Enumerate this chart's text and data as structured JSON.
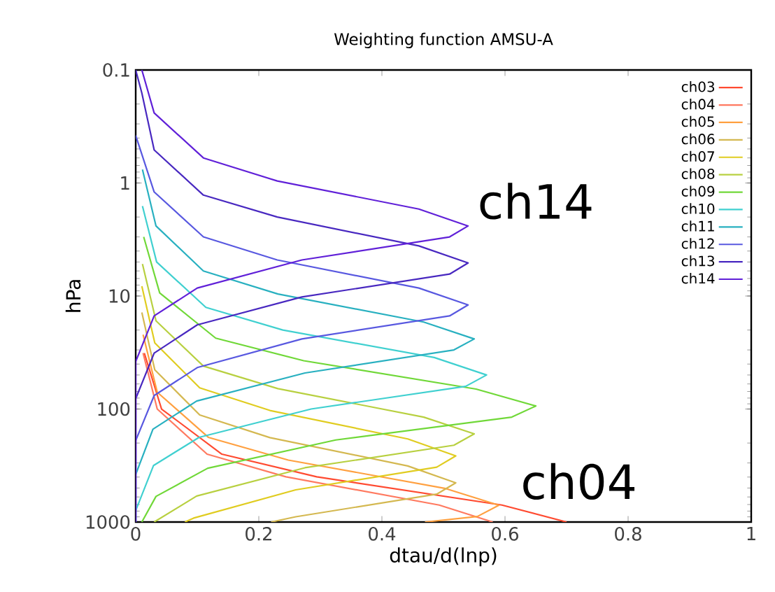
{
  "chart_data": {
    "type": "line",
    "title": "Weighting function AMSU-A",
    "xlabel": "dtau/d(lnp)",
    "ylabel": "hPa",
    "xlim": [
      0,
      1
    ],
    "xticks": [
      0,
      0.2,
      0.4,
      0.6,
      0.8,
      1
    ],
    "ylim": [
      1000,
      0.1
    ],
    "yticks": [
      0.1,
      1,
      10,
      100,
      1000
    ],
    "log": "y",
    "grid": false,
    "legend": "top right",
    "annotations": [
      "ch14",
      "ch04"
    ],
    "series": [
      {
        "name": "ch03",
        "color": "#ff4a30",
        "x": [
          0.014,
          0.042,
          0.14,
          0.294,
          0.595,
          0.7
        ],
        "values": [
          32,
          100,
          251,
          398,
          708,
          1000
        ]
      },
      {
        "name": "ch04",
        "color": "#ff7a60",
        "x": [
          0.012,
          0.035,
          0.116,
          0.244,
          0.493,
          0.58
        ],
        "values": [
          32,
          100,
          251,
          398,
          708,
          1000
        ]
      },
      {
        "name": "ch05",
        "color": "#ffa040",
        "x": [
          0.012,
          0.035,
          0.118,
          0.248,
          0.502,
          0.59,
          0.555,
          0.47
        ],
        "values": [
          22,
          71,
          178,
          283,
          503,
          710,
          894,
          1000
        ]
      },
      {
        "name": "ch06",
        "color": "#d4b850",
        "x": [
          0.01,
          0.031,
          0.104,
          0.218,
          0.442,
          0.52,
          0.489,
          0.26,
          0.22
        ],
        "values": [
          14,
          45,
          113,
          179,
          319,
          450,
          567,
          898,
          1000
        ]
      },
      {
        "name": "ch07",
        "color": "#e0cc20",
        "x": [
          0.01,
          0.031,
          0.104,
          0.218,
          0.442,
          0.52,
          0.489,
          0.26,
          0.094,
          0.08
        ],
        "values": [
          8.2,
          26,
          65,
          103,
          184,
          260,
          327,
          519,
          923,
          1000
        ]
      },
      {
        "name": "ch08",
        "color": "#b8d040",
        "x": [
          0.011,
          0.033,
          0.11,
          0.231,
          0.468,
          0.55,
          0.517,
          0.275,
          0.099,
          0.03
        ],
        "values": [
          5.2,
          16.6,
          41.7,
          66,
          118,
          166,
          209,
          331,
          589,
          1000
        ]
      },
      {
        "name": "ch09",
        "color": "#70d838",
        "x": [
          0.013,
          0.039,
          0.13,
          0.273,
          0.553,
          0.65,
          0.611,
          0.325,
          0.117,
          0.033,
          0.01
        ],
        "values": [
          3,
          9.4,
          23.6,
          37.4,
          66.6,
          94,
          118,
          188,
          334,
          593,
          1000
        ]
      },
      {
        "name": "ch10",
        "color": "#40d0d0",
        "x": [
          0.011,
          0.034,
          0.114,
          0.239,
          0.485,
          0.57,
          0.536,
          0.285,
          0.103,
          0.029,
          0,
          0
        ],
        "values": [
          1.6,
          5,
          12.6,
          20,
          35,
          50,
          63,
          100,
          178,
          316,
          793,
          1000
        ]
      },
      {
        "name": "ch11",
        "color": "#28b0c0",
        "x": [
          0.011,
          0.033,
          0.11,
          0.231,
          0.468,
          0.55,
          0.517,
          0.275,
          0.099,
          0.028,
          0,
          0
        ],
        "values": [
          0.76,
          2.4,
          6,
          9.6,
          17,
          24,
          30,
          48,
          85,
          151,
          380,
          1000
        ]
      },
      {
        "name": "ch12",
        "color": "#5858e0",
        "x": [
          0,
          0.03,
          0.11,
          0.23,
          0.46,
          0.54,
          0.51,
          0.27,
          0.1,
          0.03,
          0,
          0
        ],
        "values": [
          0.38,
          1.2,
          3,
          4.8,
          8.5,
          12,
          15,
          24,
          43,
          76,
          190,
          1000
        ]
      },
      {
        "name": "ch13",
        "color": "#4828c0",
        "x": [
          0,
          0.01,
          0.03,
          0.11,
          0.23,
          0.46,
          0.54,
          0.51,
          0.27,
          0.1,
          0.03,
          0,
          0
        ],
        "values": [
          0.1,
          0.16,
          0.51,
          1.28,
          2,
          3.6,
          5.1,
          6.4,
          10.2,
          18,
          32,
          81,
          1000
        ]
      },
      {
        "name": "ch14",
        "color": "#6020d8",
        "x": [
          0.01,
          0.03,
          0.11,
          0.23,
          0.46,
          0.54,
          0.51,
          0.27,
          0.1,
          0.03,
          0,
          0
        ],
        "values": [
          0.1,
          0.24,
          0.6,
          0.96,
          1.7,
          2.4,
          3,
          4.8,
          8.5,
          15,
          38,
          1000
        ]
      }
    ]
  }
}
